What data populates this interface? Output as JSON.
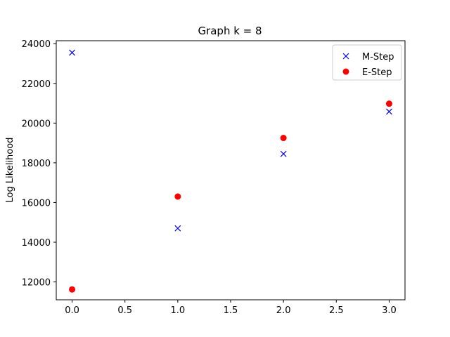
{
  "chart_data": {
    "type": "scatter",
    "title": "Graph k = 8",
    "xlabel": "",
    "ylabel": "Log Likelihood",
    "xlim": [
      -0.15,
      3.15
    ],
    "ylim": [
      11100,
      24150
    ],
    "xticks": [
      0.0,
      0.5,
      1.0,
      1.5,
      2.0,
      2.5,
      3.0
    ],
    "xtick_labels": [
      "0.0",
      "0.5",
      "1.0",
      "1.5",
      "2.0",
      "2.5",
      "3.0"
    ],
    "yticks": [
      12000,
      14000,
      16000,
      18000,
      20000,
      22000,
      24000
    ],
    "ytick_labels": [
      "12000",
      "14000",
      "16000",
      "18000",
      "20000",
      "22000",
      "24000"
    ],
    "grid": false,
    "legend_position": "top-right",
    "series": [
      {
        "name": "M-Step",
        "marker": "x",
        "color": "#0000ff",
        "x": [
          0,
          1,
          2,
          3
        ],
        "y": [
          23550,
          14700,
          18450,
          20580
        ]
      },
      {
        "name": "E-Step",
        "marker": "o",
        "color": "#ff0000",
        "x": [
          0,
          1,
          2,
          3
        ],
        "y": [
          11620,
          16300,
          19250,
          20980
        ]
      }
    ]
  }
}
